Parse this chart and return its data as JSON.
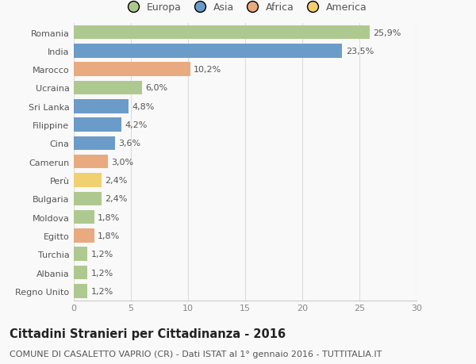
{
  "countries": [
    "Romania",
    "India",
    "Marocco",
    "Ucraina",
    "Sri Lanka",
    "Filippine",
    "Cina",
    "Camerun",
    "Perù",
    "Bulgaria",
    "Moldova",
    "Egitto",
    "Turchia",
    "Albania",
    "Regno Unito"
  ],
  "values": [
    25.9,
    23.5,
    10.2,
    6.0,
    4.8,
    4.2,
    3.6,
    3.0,
    2.4,
    2.4,
    1.8,
    1.8,
    1.2,
    1.2,
    1.2
  ],
  "labels": [
    "25,9%",
    "23,5%",
    "10,2%",
    "6,0%",
    "4,8%",
    "4,2%",
    "3,6%",
    "3,0%",
    "2,4%",
    "2,4%",
    "1,8%",
    "1,8%",
    "1,2%",
    "1,2%",
    "1,2%"
  ],
  "continents": [
    "Europa",
    "Asia",
    "Africa",
    "Europa",
    "Asia",
    "Asia",
    "Asia",
    "Africa",
    "America",
    "Europa",
    "Europa",
    "Africa",
    "Europa",
    "Europa",
    "Europa"
  ],
  "continent_colors": {
    "Europa": "#aec98f",
    "Asia": "#6b9bc9",
    "Africa": "#e8aa7e",
    "America": "#f0d070"
  },
  "legend_order": [
    "Europa",
    "Asia",
    "Africa",
    "America"
  ],
  "xlim": [
    0,
    30
  ],
  "xticks": [
    0,
    5,
    10,
    15,
    20,
    25,
    30
  ],
  "title": "Cittadini Stranieri per Cittadinanza - 2016",
  "subtitle": "COMUNE DI CASALETTO VAPRIO (CR) - Dati ISTAT al 1° gennaio 2016 - TUTTITALIA.IT",
  "background_color": "#f9f9f9",
  "bar_height": 0.75,
  "title_fontsize": 10.5,
  "subtitle_fontsize": 8,
  "label_fontsize": 8,
  "tick_fontsize": 8,
  "legend_fontsize": 9
}
